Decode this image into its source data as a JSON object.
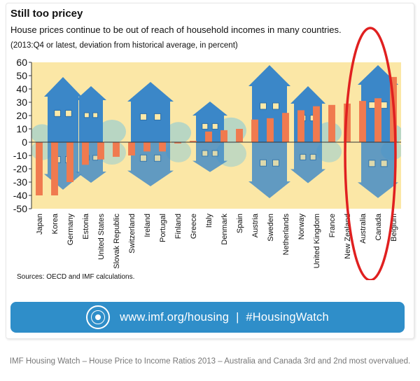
{
  "header": {
    "title": "Still too pricey",
    "subtitle": "House prices continue to be out of reach of household incomes in many countries.",
    "note": "(2013:Q4 or latest, deviation from historical average, in percent)"
  },
  "chart_data": {
    "type": "bar",
    "categories": [
      "Japan",
      "Korea",
      "Germany",
      "Estonia",
      "United States",
      "Slovak Republic",
      "Switzerland",
      "Ireland",
      "Portugal",
      "Finland",
      "Greece",
      "Italy",
      "Denmark",
      "Spain",
      "Austria",
      "Sweden",
      "Netherlands",
      "Norway",
      "United Kingdom",
      "France",
      "New Zealand",
      "Australia",
      "Canada",
      "Belgium"
    ],
    "values": [
      -40,
      -40,
      -30,
      -17,
      -13,
      -11,
      -10,
      -7,
      -7,
      -1,
      1,
      8,
      9,
      10,
      17,
      18,
      22,
      24,
      27,
      28,
      29,
      31,
      33,
      49
    ],
    "title": "Still too pricey",
    "ylim": [
      -50,
      60
    ],
    "yticks": [
      -50,
      -40,
      -30,
      -20,
      -10,
      0,
      10,
      20,
      30,
      40,
      50,
      60
    ],
    "grid": false,
    "highlighted": [
      "Australia",
      "Canada"
    ],
    "colors": {
      "bar": "#f07a4f",
      "background": "#fbe7a6",
      "house": "#3b87c8",
      "tree": "#b8d6c3",
      "highlight_ring": "#e02020"
    }
  },
  "footer": {
    "sources": "Sources: OECD and IMF calculations.",
    "banner_url": "www.imf.org/housing",
    "banner_separator": "|",
    "banner_hashtag": "#HousingWatch",
    "banner_icon": "imf-seal-icon",
    "caption": "IMF Housing Watch – House Price to Income Ratios 2013 – Australia and Canada 3rd and 2nd most overvalued."
  }
}
